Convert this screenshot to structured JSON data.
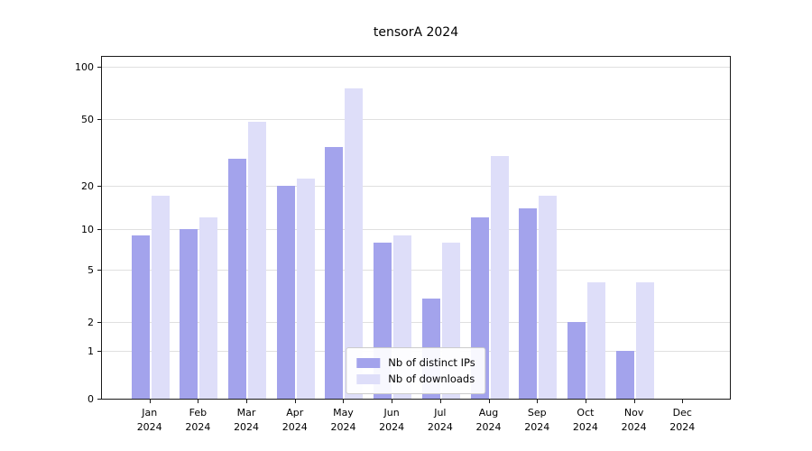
{
  "chart_data": {
    "type": "bar",
    "title": "tensorA 2024",
    "categories": [
      "Jan",
      "Feb",
      "Mar",
      "Apr",
      "May",
      "Jun",
      "Jul",
      "Aug",
      "Sep",
      "Oct",
      "Nov",
      "Dec"
    ],
    "category_year": "2024",
    "series": [
      {
        "name": "Nb of distinct IPs",
        "color": "#a3a3ec",
        "values": [
          9,
          10,
          29,
          20,
          34,
          8,
          3,
          12,
          14,
          2,
          1,
          0
        ]
      },
      {
        "name": "Nb of downloads",
        "color": "#dedef9",
        "values": [
          17,
          12,
          48,
          22,
          75,
          9,
          8,
          30,
          17,
          4,
          4,
          0
        ]
      }
    ],
    "yticks": [
      0,
      1,
      2,
      5,
      10,
      20,
      50,
      100
    ],
    "yscale": "symlog",
    "ylim": [
      0,
      110
    ],
    "grid": "horizontal",
    "legend_position": "bottom-center-inside",
    "colors": {
      "grid": "#e0e0e0",
      "axis": "#1a1a1a",
      "background": "#ffffff"
    }
  }
}
